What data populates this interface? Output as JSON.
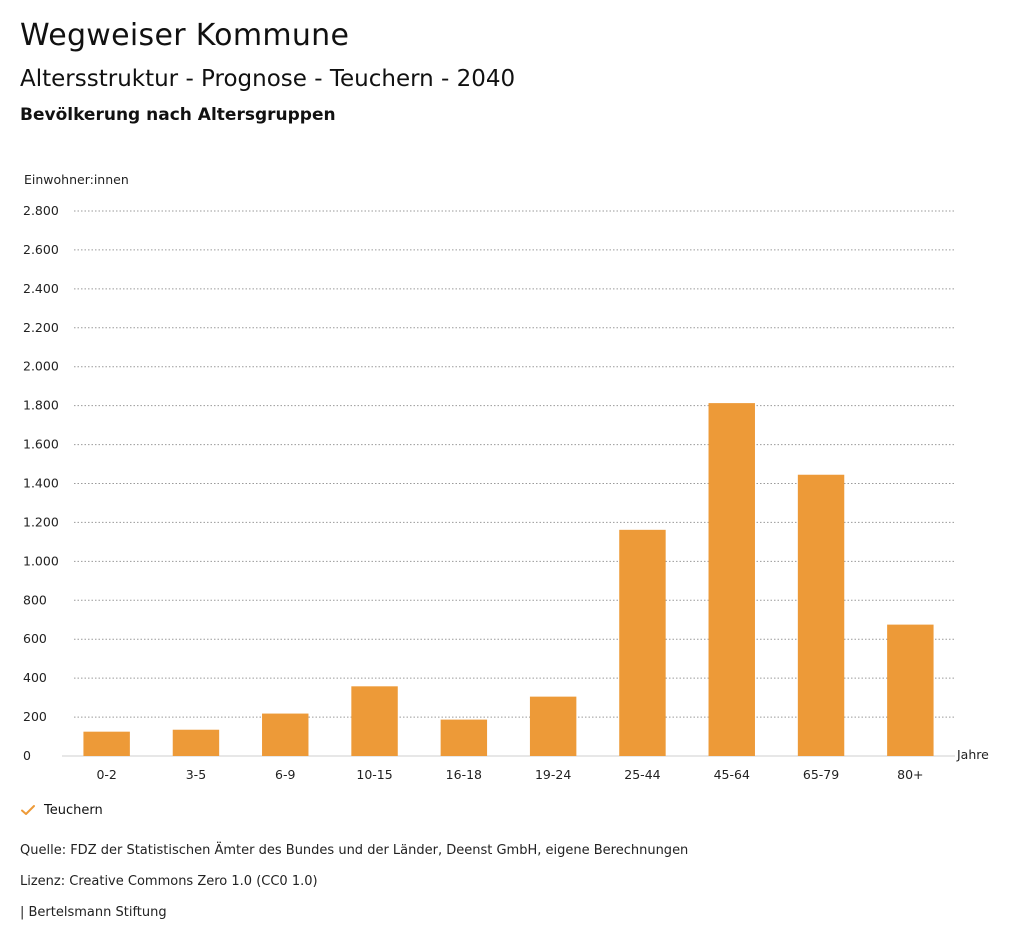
{
  "header": {
    "title": "Wegweiser Kommune",
    "subtitle": "Altersstruktur - Prognose - Teuchern - 2040",
    "section": "Bevölkerung nach Altersgruppen"
  },
  "chart_data": {
    "type": "bar",
    "title": "Bevölkerung nach Altersgruppen",
    "ylabel": "Einwohner:innen",
    "xlabel": "Jahre",
    "ylim": [
      0,
      2800
    ],
    "yticks": [
      0,
      200,
      400,
      600,
      800,
      1000,
      1200,
      1400,
      1600,
      1800,
      2000,
      2200,
      2400,
      2600,
      2800
    ],
    "ytick_labels": [
      "0",
      "200",
      "400",
      "600",
      "800",
      "1.000",
      "1.200",
      "1.400",
      "1.600",
      "1.800",
      "2.000",
      "2.200",
      "2.400",
      "2.600",
      "2.800"
    ],
    "categories": [
      "0-2",
      "3-5",
      "6-9",
      "10-15",
      "16-18",
      "19-24",
      "25-44",
      "45-64",
      "65-79",
      "80+"
    ],
    "series": [
      {
        "name": "Teuchern",
        "values": [
          125,
          135,
          218,
          358,
          187,
          305,
          1162,
          1813,
          1445,
          675
        ]
      }
    ],
    "grid": true,
    "legend_position": "bottom-left"
  },
  "colors": {
    "bar": "#ED9A38",
    "grid": "#9a9a9a",
    "legend_check": "#ED9A38"
  },
  "legend": {
    "label": "Teuchern",
    "icon": "check-icon"
  },
  "footer": {
    "source": "Quelle: FDZ der Statistischen Ämter des Bundes und der Länder, Deenst GmbH, eigene Berechnungen",
    "license": "Lizenz: Creative Commons Zero 1.0 (CC0 1.0)",
    "publisher": "| Bertelsmann Stiftung"
  }
}
